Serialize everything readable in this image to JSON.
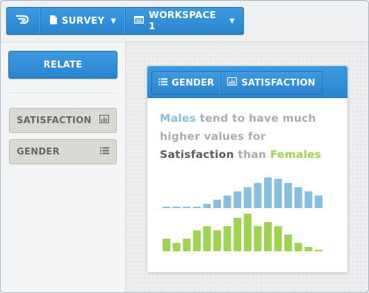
{
  "topbar": {
    "logo_icon": "cloud-logo-icon",
    "survey_label": "SURVEY",
    "workspace_label": "WORKSPACE 1"
  },
  "sidebar": {
    "relate_label": "RELATE",
    "fields": [
      {
        "label": "SATISFACTION",
        "icon": "bar-chart-icon"
      },
      {
        "label": "GENDER",
        "icon": "list-icon"
      }
    ]
  },
  "card": {
    "tabs": [
      {
        "label": "GENDER",
        "icon": "list-icon"
      },
      {
        "label": "SATISFACTION",
        "icon": "bar-chart-icon"
      }
    ],
    "desc": {
      "males": "Males",
      "part1": " tend to have much higher values for ",
      "satisfaction": "Satisfaction",
      "part2": " than ",
      "females": "Females"
    }
  },
  "colors": {
    "accent": "#2a85cf",
    "male": "#86bfe0",
    "female": "#9fd452",
    "text_muted": "#a6aeb3"
  },
  "chart_data": {
    "type": "bar",
    "series": [
      {
        "name": "Males",
        "values": [
          0,
          0,
          0,
          0,
          1,
          2,
          3,
          4,
          5,
          6,
          8,
          7,
          6,
          5,
          4,
          3
        ]
      },
      {
        "name": "Females",
        "values": [
          3,
          2,
          3,
          5,
          6,
          5,
          6,
          8,
          9,
          6,
          7,
          6,
          4,
          2,
          1,
          0
        ]
      }
    ]
  }
}
